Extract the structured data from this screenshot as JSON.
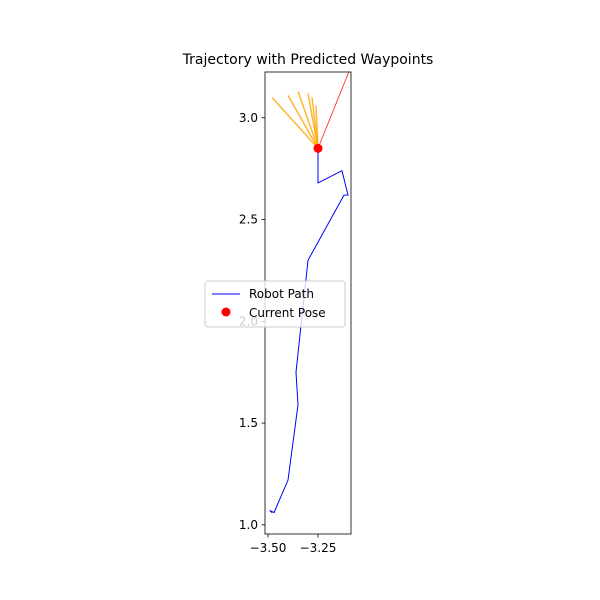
{
  "chart_data": {
    "type": "line",
    "title": "Trajectory with Predicted Waypoints",
    "xlabel": "",
    "ylabel": "",
    "xlim": [
      -3.515,
      -3.085
    ],
    "ylim": [
      0.955,
      3.225
    ],
    "x_ticks": [
      {
        "value": -3.5,
        "label": "−3.50"
      },
      {
        "value": -3.25,
        "label": "−3.25"
      }
    ],
    "y_ticks": [
      {
        "value": 1.0,
        "label": "1.0"
      },
      {
        "value": 1.5,
        "label": "1.5"
      },
      {
        "value": 2.0,
        "label": "2.0"
      },
      {
        "value": 2.5,
        "label": "2.5"
      },
      {
        "value": 3.0,
        "label": "3.0"
      }
    ],
    "grid": false,
    "legend_position": "center-left",
    "series": [
      {
        "name": "Robot Path",
        "kind": "line",
        "color": "#0000ff",
        "points": [
          [
            -3.48,
            1.06
          ],
          [
            -3.49,
            1.07
          ],
          [
            -3.47,
            1.06
          ],
          [
            -3.4,
            1.22
          ],
          [
            -3.35,
            1.59
          ],
          [
            -3.36,
            1.75
          ],
          [
            -3.3,
            2.3
          ],
          [
            -3.12,
            2.62
          ],
          [
            -3.1,
            2.62
          ],
          [
            -3.13,
            2.74
          ],
          [
            -3.25,
            2.68
          ],
          [
            -3.25,
            2.74
          ],
          [
            -3.25,
            2.85
          ]
        ]
      },
      {
        "name": "Current Pose",
        "kind": "point",
        "color": "#ff0000",
        "points": [
          [
            -3.25,
            2.85
          ]
        ]
      },
      {
        "kind": "line",
        "color": "#ff0000",
        "points": [
          [
            -3.25,
            2.85
          ],
          [
            -3.09,
            3.24
          ]
        ]
      }
    ],
    "predicted_waypoints": {
      "color": "#ffa500",
      "origin": [
        -3.25,
        2.85
      ],
      "endpoints": [
        [
          -3.48,
          3.1
        ],
        [
          -3.4,
          3.11
        ],
        [
          -3.35,
          3.13
        ],
        [
          -3.3,
          3.12
        ],
        [
          -3.28,
          3.1
        ],
        [
          -3.26,
          3.06
        ]
      ]
    }
  }
}
